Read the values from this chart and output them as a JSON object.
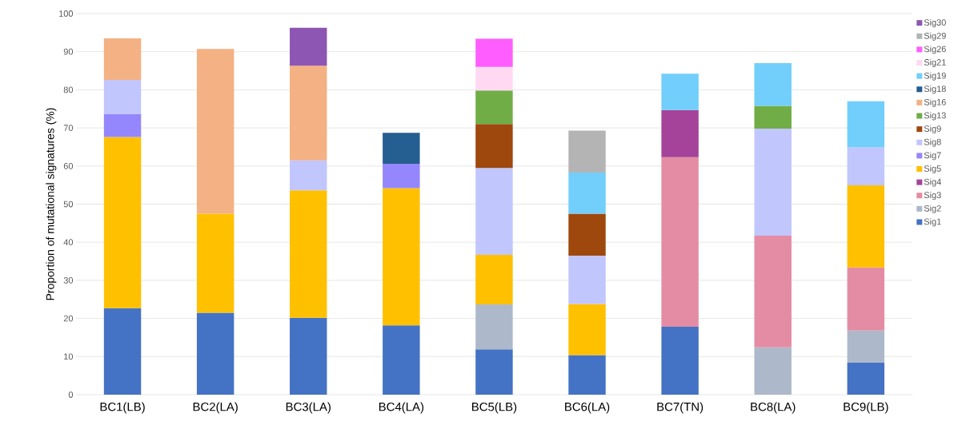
{
  "chart_data": {
    "type": "bar",
    "stacked": true,
    "ylabel": "Proportion of mutational signatures (%)",
    "categories": [
      "BC1(LB)",
      "BC2(LA)",
      "BC3(LA)",
      "BC4(LA)",
      "BC5(LB)",
      "BC6(LA)",
      "BC7(TN)",
      "BC8(LA)",
      "BC9(LB)"
    ],
    "ylim": [
      0,
      100
    ],
    "yticks": [
      0,
      10,
      20,
      30,
      40,
      50,
      60,
      70,
      80,
      90,
      100
    ],
    "grid": "y",
    "legend": "right",
    "series": [
      {
        "name": "Sig1",
        "color": "#4472c4",
        "values": [
          22.7,
          21.5,
          20.2,
          18.2,
          11.9,
          10.4,
          17.8,
          null,
          8.4
        ]
      },
      {
        "name": "Sig2",
        "color": "#adb9ca",
        "values": [
          null,
          null,
          null,
          null,
          11.8,
          null,
          null,
          12.4,
          8.4
        ]
      },
      {
        "name": "Sig3",
        "color": "#e48ca4",
        "values": [
          null,
          null,
          null,
          null,
          null,
          null,
          44.5,
          29.3,
          16.6
        ]
      },
      {
        "name": "Sig4",
        "color": "#a44399",
        "values": [
          null,
          null,
          null,
          null,
          null,
          null,
          12.4,
          null,
          null
        ]
      },
      {
        "name": "Sig5",
        "color": "#ffc000",
        "values": [
          44.9,
          26.0,
          33.4,
          36.0,
          13.0,
          13.4,
          null,
          null,
          21.5
        ]
      },
      {
        "name": "Sig7",
        "color": "#9486fc",
        "values": [
          6.1,
          null,
          null,
          6.4,
          null,
          null,
          null,
          null,
          null
        ]
      },
      {
        "name": "Sig8",
        "color": "#c1c6fd",
        "values": [
          8.9,
          null,
          7.9,
          null,
          22.8,
          12.7,
          null,
          28.1,
          10.0
        ]
      },
      {
        "name": "Sig9",
        "color": "#9e480e",
        "values": [
          null,
          null,
          null,
          null,
          11.5,
          11.0,
          null,
          null,
          null
        ]
      },
      {
        "name": "Sig13",
        "color": "#70ad47",
        "values": [
          null,
          null,
          null,
          null,
          8.8,
          null,
          null,
          6.0,
          null
        ]
      },
      {
        "name": "Sig16",
        "color": "#f4b183",
        "values": [
          10.9,
          43.2,
          24.8,
          null,
          null,
          null,
          null,
          null,
          null
        ]
      },
      {
        "name": "Sig18",
        "color": "#255e91",
        "values": [
          null,
          null,
          null,
          8.1,
          null,
          null,
          null,
          null,
          null
        ]
      },
      {
        "name": "Sig19",
        "color": "#72cefa",
        "values": [
          null,
          null,
          null,
          null,
          null,
          10.8,
          9.5,
          11.2,
          12.1
        ]
      },
      {
        "name": "Sig21",
        "color": "#ffd9f2",
        "values": [
          null,
          null,
          null,
          null,
          6.2,
          null,
          null,
          null,
          null
        ]
      },
      {
        "name": "Sig26",
        "color": "#ff5dff",
        "values": [
          null,
          null,
          null,
          null,
          7.4,
          null,
          null,
          null,
          null
        ]
      },
      {
        "name": "Sig29",
        "color": "#b4b4b4",
        "values": [
          null,
          null,
          null,
          null,
          null,
          11.0,
          null,
          null,
          null
        ]
      },
      {
        "name": "Sig30",
        "color": "#8e56b3",
        "values": [
          null,
          null,
          10.0,
          null,
          null,
          null,
          null,
          null,
          null
        ]
      }
    ]
  }
}
